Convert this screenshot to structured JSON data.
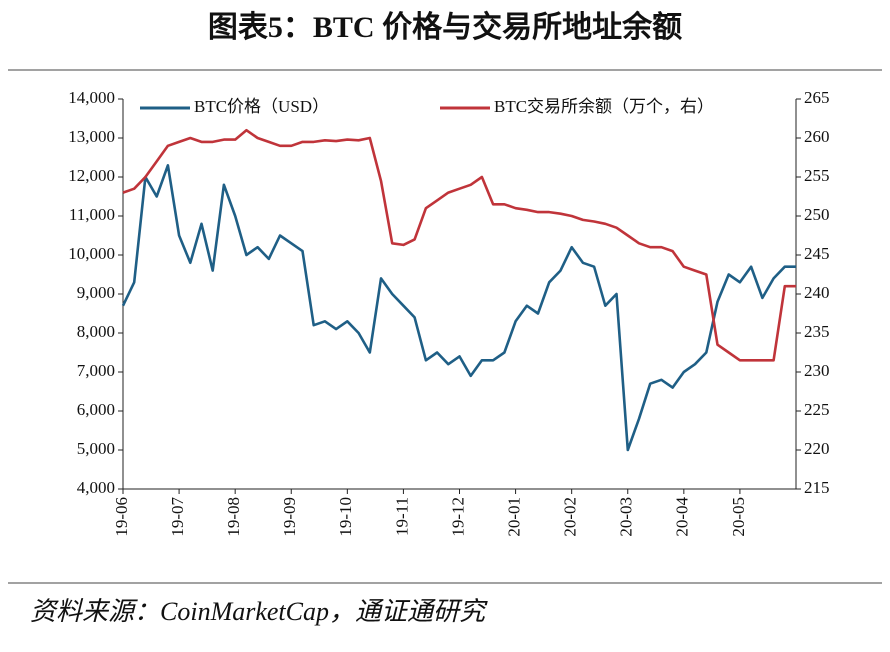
{
  "chart_data": {
    "type": "line",
    "title": "图表5：BTC 价格与交易所地址余额",
    "source": "资料来源：CoinMarketCap，通证通研究",
    "x": [
      0,
      0.2,
      0.4,
      0.6,
      0.8,
      1,
      1.2,
      1.4,
      1.6,
      1.8,
      2,
      2.2,
      2.4,
      2.6,
      2.8,
      3,
      3.2,
      3.4,
      3.6,
      3.8,
      4,
      4.2,
      4.4,
      4.6,
      4.8,
      5,
      5.2,
      5.4,
      5.6,
      5.8,
      6,
      6.2,
      6.4,
      6.6,
      6.8,
      7,
      7.2,
      7.4,
      7.6,
      7.8,
      8,
      8.2,
      8.4,
      8.6,
      8.8,
      9,
      9.2,
      9.4,
      9.6,
      9.8,
      10,
      10.2,
      10.4,
      10.6,
      10.8,
      11,
      11.2,
      11.4,
      11.6,
      11.8,
      12
    ],
    "xlim": [
      0,
      12
    ],
    "xticks": [
      {
        "value": 0,
        "label": "19-06"
      },
      {
        "value": 1,
        "label": "19-07"
      },
      {
        "value": 2,
        "label": "19-08"
      },
      {
        "value": 3,
        "label": "19-09"
      },
      {
        "value": 4,
        "label": "19-10"
      },
      {
        "value": 5,
        "label": "19-11"
      },
      {
        "value": 6,
        "label": "19-12"
      },
      {
        "value": 7,
        "label": "20-01"
      },
      {
        "value": 8,
        "label": "20-02"
      },
      {
        "value": 9,
        "label": "20-03"
      },
      {
        "value": 10,
        "label": "20-04"
      },
      {
        "value": 11,
        "label": "20-05"
      }
    ],
    "ylim": [
      4000,
      14000
    ],
    "yticks": [
      {
        "value": 4000,
        "label": "4,000"
      },
      {
        "value": 5000,
        "label": "5,000"
      },
      {
        "value": 6000,
        "label": "6,000"
      },
      {
        "value": 7000,
        "label": "7,000"
      },
      {
        "value": 8000,
        "label": "8,000"
      },
      {
        "value": 9000,
        "label": "9,000"
      },
      {
        "value": 10000,
        "label": "10,000"
      },
      {
        "value": 11000,
        "label": "11,000"
      },
      {
        "value": 12000,
        "label": "12,000"
      },
      {
        "value": 13000,
        "label": "13,000"
      },
      {
        "value": 14000,
        "label": "14,000"
      }
    ],
    "y2lim": [
      215,
      265
    ],
    "y2ticks": [
      215,
      220,
      225,
      230,
      235,
      240,
      245,
      250,
      255,
      260,
      265
    ],
    "series": [
      {
        "name": "BTC价格（USD）",
        "color": "#1f5f86",
        "axis": "y",
        "values": [
          8700,
          9300,
          12000,
          11500,
          12300,
          10500,
          9800,
          10800,
          9600,
          11800,
          11000,
          10000,
          10200,
          9900,
          10500,
          10300,
          10100,
          8200,
          8300,
          8100,
          8300,
          8000,
          7500,
          9400,
          9000,
          8700,
          8400,
          7300,
          7500,
          7200,
          7400,
          6900,
          7300,
          7300,
          7500,
          8300,
          8700,
          8500,
          9300,
          9600,
          10200,
          9800,
          9700,
          8700,
          9000,
          5000,
          5800,
          6700,
          6800,
          6600,
          7000,
          7200,
          7500,
          8800,
          9500,
          9300,
          9700,
          8900,
          9400,
          9700,
          9700
        ]
      },
      {
        "name": "BTC交易所余额（万个，右）",
        "color": "#c0343a",
        "axis": "y2",
        "values": [
          253,
          253.5,
          255,
          257,
          259,
          259.5,
          260,
          259.5,
          259.5,
          259.8,
          259.8,
          261,
          260,
          259.5,
          259,
          259,
          259.5,
          259.5,
          259.7,
          259.6,
          259.8,
          259.7,
          260,
          254.5,
          246.5,
          246.3,
          247,
          251,
          252,
          253,
          253.5,
          254,
          255,
          251.5,
          251.5,
          251,
          250.8,
          250.5,
          250.5,
          250.3,
          250,
          249.5,
          249.3,
          249,
          248.5,
          247.5,
          246.5,
          246,
          246,
          245.5,
          243.5,
          243,
          242.5,
          233.5,
          232.5,
          231.5,
          231.5,
          231.5,
          231.5,
          241,
          241
        ]
      }
    ]
  }
}
